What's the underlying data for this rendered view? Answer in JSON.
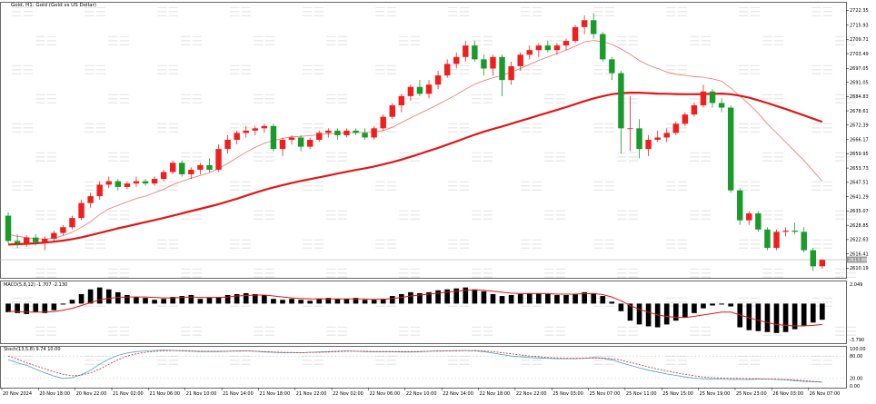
{
  "chart_data": {
    "type": "candlestick",
    "title": "Gold, H1: Gold (Gold vs US Dollar)",
    "colors": {
      "up": "#f01f1f",
      "down": "#1a9a2a",
      "ma_fast": "#f07070",
      "ma_slow": "#e01818",
      "macd_signal": "#e01818",
      "stoch_main": "#3ca9c9",
      "stoch_signal": "#e02020"
    },
    "price_axis": {
      "range": [
        2606.0,
        2726.0
      ],
      "ticks": [
        "2722.35",
        "2715.93",
        "2709.71",
        "2703.49",
        "2697.05",
        "2691.05",
        "2684.83",
        "2678.61",
        "2672.39",
        "2666.17",
        "2659.95",
        "2653.73",
        "2647.51",
        "2641.29",
        "2635.07",
        "2628.85",
        "2622.63",
        "2616.41",
        "2610.19"
      ],
      "current_price": "2613.88"
    },
    "time_labels": [
      "20 Nov 2024",
      "20 Nov 18:00",
      "20 Nov 22:00",
      "21 Nov 02:00",
      "21 Nov 06:00",
      "21 Nov 10:00",
      "21 Nov 14:00",
      "21 Nov 18:00",
      "21 Nov 22:00",
      "22 Nov 02:00",
      "22 Nov 06:00",
      "22 Nov 10:00",
      "22 Nov 14:00",
      "22 Nov 18:00",
      "22 Nov 22:00",
      "25 Nov 03:00",
      "25 Nov 07:00",
      "25 Nov 11:00",
      "25 Nov 15:00",
      "25 Nov 19:00",
      "25 Nov 23:00",
      "26 Nov 03:00",
      "26 Nov 07:00"
    ],
    "candles": [
      [
        2633,
        2634.5,
        2621,
        2622
      ],
      [
        2622,
        2625,
        2619,
        2621
      ],
      [
        2621,
        2624.5,
        2619.5,
        2623.5
      ],
      [
        2623.5,
        2625,
        2620,
        2621.5
      ],
      [
        2621.5,
        2624,
        2618,
        2623
      ],
      [
        2623,
        2626.5,
        2621.5,
        2625.5
      ],
      [
        2625.5,
        2629,
        2624.5,
        2628
      ],
      [
        2628,
        2633,
        2627,
        2632
      ],
      [
        2632,
        2640,
        2631,
        2638.5
      ],
      [
        2638.5,
        2643,
        2636.5,
        2641.5
      ],
      [
        2641.5,
        2648,
        2640,
        2646.5
      ],
      [
        2646.5,
        2650,
        2645,
        2648
      ],
      [
        2648,
        2649,
        2644,
        2645.5
      ],
      [
        2645.5,
        2648,
        2644.5,
        2647
      ],
      [
        2647,
        2650,
        2645.5,
        2648
      ],
      [
        2648,
        2649,
        2646,
        2647
      ],
      [
        2647,
        2650,
        2646,
        2649
      ],
      [
        2649,
        2653,
        2648,
        2652
      ],
      [
        2652,
        2657,
        2651,
        2656
      ],
      [
        2656,
        2657,
        2650,
        2651
      ],
      [
        2651,
        2654,
        2649,
        2653
      ],
      [
        2653,
        2656,
        2651,
        2655
      ],
      [
        2655,
        2658,
        2652,
        2653
      ],
      [
        2653,
        2664,
        2652,
        2662
      ],
      [
        2662,
        2668,
        2660,
        2666
      ],
      [
        2666,
        2670,
        2664,
        2669
      ],
      [
        2669,
        2672,
        2667,
        2670
      ],
      [
        2670,
        2672,
        2668,
        2671
      ],
      [
        2671,
        2673,
        2669,
        2672
      ],
      [
        2672,
        2673,
        2661,
        2662
      ],
      [
        2662,
        2667,
        2659,
        2666
      ],
      [
        2666,
        2668,
        2664,
        2667
      ],
      [
        2667,
        2668,
        2661,
        2663
      ],
      [
        2663,
        2667,
        2662,
        2666
      ],
      [
        2666,
        2670,
        2665,
        2669
      ],
      [
        2669,
        2671,
        2667,
        2670
      ],
      [
        2670,
        2671,
        2666,
        2668
      ],
      [
        2668,
        2671,
        2667,
        2670
      ],
      [
        2670,
        2671,
        2668,
        2669
      ],
      [
        2669,
        2671,
        2666,
        2667
      ],
      [
        2667,
        2672,
        2666,
        2671
      ],
      [
        2671,
        2677,
        2670,
        2676
      ],
      [
        2676,
        2682,
        2675,
        2681
      ],
      [
        2681,
        2686,
        2678,
        2685
      ],
      [
        2685,
        2690,
        2683,
        2689
      ],
      [
        2689,
        2692,
        2685,
        2686
      ],
      [
        2686,
        2692,
        2684,
        2690
      ],
      [
        2690,
        2696,
        2688,
        2694
      ],
      [
        2694,
        2701,
        2693,
        2699
      ],
      [
        2699,
        2704,
        2697,
        2702
      ],
      [
        2702,
        2709,
        2700,
        2707
      ],
      [
        2707,
        2709,
        2700,
        2701
      ],
      [
        2701,
        2703,
        2694,
        2697
      ],
      [
        2697,
        2703,
        2694,
        2702
      ],
      [
        2702,
        2703,
        2685,
        2692
      ],
      [
        2692,
        2700,
        2690,
        2698
      ],
      [
        2698,
        2704,
        2696,
        2703
      ],
      [
        2703,
        2707,
        2701,
        2705
      ],
      [
        2705,
        2708,
        2702,
        2707
      ],
      [
        2707,
        2709,
        2704,
        2705
      ],
      [
        2705,
        2708,
        2703,
        2707
      ],
      [
        2707,
        2710,
        2705,
        2709
      ],
      [
        2709,
        2716,
        2708,
        2715
      ],
      [
        2715,
        2720,
        2712,
        2718
      ],
      [
        2718,
        2721,
        2710,
        2712
      ],
      [
        2712,
        2713,
        2700,
        2701
      ],
      [
        2701,
        2702,
        2692,
        2695
      ],
      [
        2695,
        2696,
        2660,
        2671
      ],
      [
        2671,
        2685,
        2661,
        2671
      ],
      [
        2671,
        2675,
        2658,
        2662
      ],
      [
        2662,
        2668,
        2659,
        2666
      ],
      [
        2666,
        2670,
        2665,
        2667
      ],
      [
        2667,
        2671,
        2665,
        2669
      ],
      [
        2669,
        2674,
        2668,
        2673
      ],
      [
        2673,
        2678,
        2672,
        2677
      ],
      [
        2677,
        2682,
        2676,
        2681
      ],
      [
        2681,
        2690,
        2680,
        2687
      ],
      [
        2687,
        2688,
        2680,
        2682
      ],
      [
        2682,
        2684,
        2678,
        2680
      ],
      [
        2680,
        2681,
        2643,
        2644
      ],
      [
        2644,
        2645,
        2629,
        2631
      ],
      [
        2631,
        2635,
        2629,
        2634
      ],
      [
        2634,
        2635,
        2626,
        2627
      ],
      [
        2627,
        2628,
        2618,
        2619
      ],
      [
        2619,
        2627,
        2618,
        2626
      ],
      [
        2626,
        2628,
        2624,
        2626.5
      ],
      [
        2626.5,
        2630,
        2625,
        2626
      ],
      [
        2626,
        2628,
        2617,
        2618
      ],
      [
        2618,
        2619,
        2609,
        2611
      ],
      [
        2611,
        2614,
        2610,
        2613.8
      ]
    ],
    "ma_fast": [
      2625,
      2624,
      2623.5,
      2623,
      2622.8,
      2623.3,
      2624.3,
      2625.8,
      2628,
      2630.3,
      2633.5,
      2636,
      2637.5,
      2639,
      2640.5,
      2641.5,
      2643,
      2644.5,
      2646.5,
      2648,
      2649.3,
      2650.5,
      2651.7,
      2653.5,
      2655.7,
      2658.2,
      2660.6,
      2662.7,
      2664.5,
      2665.7,
      2666.6,
      2667.3,
      2667.5,
      2667.8,
      2668.2,
      2668.6,
      2668.8,
      2669,
      2669.2,
      2669.2,
      2669.4,
      2670,
      2671.5,
      2673.5,
      2675.5,
      2677.5,
      2679.4,
      2681.4,
      2683.5,
      2685.6,
      2688,
      2690.2,
      2691.7,
      2693,
      2694,
      2695.5,
      2697,
      2698.8,
      2700.5,
      2702,
      2703.5,
      2705,
      2706.7,
      2708.6,
      2709.2,
      2708.7,
      2707.5,
      2705.5,
      2703.2,
      2700.5,
      2698.5,
      2697,
      2695.5,
      2694.5,
      2694,
      2693.5,
      2693.2,
      2692.5,
      2691.5,
      2688.5,
      2685,
      2681.5,
      2677.5,
      2673,
      2669,
      2665,
      2661,
      2657,
      2652.5,
      2648
    ],
    "ma_slow": [
      2620.5,
      2620.6,
      2620.8,
      2621,
      2621.3,
      2621.7,
      2622.2,
      2622.8,
      2623.6,
      2624.5,
      2625.5,
      2626.5,
      2627.5,
      2628.4,
      2629.3,
      2630.2,
      2631.1,
      2632,
      2633,
      2634,
      2635,
      2636,
      2637,
      2638,
      2639.2,
      2640.4,
      2641.7,
      2643,
      2644.2,
      2645.3,
      2646.3,
      2647.2,
      2648.1,
      2648.9,
      2649.7,
      2650.5,
      2651.3,
      2652.1,
      2652.9,
      2653.6,
      2654.4,
      2655.3,
      2656.3,
      2657.4,
      2658.6,
      2659.9,
      2661.2,
      2662.5,
      2663.9,
      2665.3,
      2666.8,
      2668.2,
      2669.5,
      2670.7,
      2671.8,
      2673,
      2674.2,
      2675.4,
      2676.6,
      2677.8,
      2679,
      2680.2,
      2681.5,
      2682.8,
      2684,
      2685,
      2685.8,
      2686.3,
      2686.5,
      2686.5,
      2686.3,
      2686.1,
      2686,
      2685.9,
      2685.8,
      2685.8,
      2685.9,
      2686,
      2686.1,
      2685.8,
      2685.2,
      2684.3,
      2683.2,
      2682,
      2680.7,
      2679.4,
      2678,
      2676.6,
      2675.2,
      2673.8
    ],
    "macd": {
      "label": "MACD(5,8,12) -1.707 -2.130",
      "scale_top": "2.049",
      "scale_bottom": "-3.790",
      "range": [
        -3.79,
        2.049
      ],
      "histogram": [
        -0.9,
        -1.0,
        -1.1,
        -0.9,
        -1.0,
        -0.7,
        -0.1,
        0.4,
        1.0,
        1.5,
        1.7,
        1.5,
        1.2,
        0.9,
        0.7,
        0.6,
        0.4,
        0.5,
        0.7,
        0.8,
        0.9,
        0.5,
        0.6,
        0.7,
        0.9,
        1.0,
        1.1,
        1.0,
        0.9,
        0.5,
        0.4,
        0.5,
        0.4,
        0.3,
        0.5,
        0.6,
        0.5,
        0.5,
        0.6,
        0.4,
        0.4,
        0.5,
        0.8,
        1.0,
        1.2,
        1.1,
        1.2,
        1.4,
        1.5,
        1.6,
        1.7,
        1.5,
        1.3,
        1.0,
        0.8,
        0.9,
        1.0,
        1.1,
        1.1,
        1.0,
        0.9,
        0.9,
        1.0,
        1.2,
        1.1,
        0.8,
        0.2,
        -0.8,
        -1.8,
        -2.2,
        -2.4,
        -2.5,
        -2.2,
        -1.8,
        -1.5,
        -1.0,
        -0.5,
        -0.2,
        -0.1,
        -0.3,
        -2.5,
        -2.8,
        -2.9,
        -3.0,
        -3.1,
        -3.0,
        -2.7,
        -2.3,
        -2.0,
        -1.7
      ],
      "signal": [
        -0.8,
        -0.85,
        -0.9,
        -0.9,
        -0.9,
        -0.85,
        -0.7,
        -0.5,
        -0.2,
        0.1,
        0.4,
        0.55,
        0.65,
        0.7,
        0.7,
        0.7,
        0.65,
        0.6,
        0.6,
        0.65,
        0.7,
        0.65,
        0.65,
        0.65,
        0.7,
        0.8,
        0.85,
        0.9,
        0.9,
        0.8,
        0.7,
        0.6,
        0.55,
        0.5,
        0.5,
        0.5,
        0.5,
        0.5,
        0.5,
        0.5,
        0.45,
        0.45,
        0.55,
        0.65,
        0.8,
        0.9,
        1.0,
        1.1,
        1.2,
        1.3,
        1.4,
        1.45,
        1.4,
        1.3,
        1.2,
        1.1,
        1.05,
        1.05,
        1.05,
        1.05,
        1.0,
        1.0,
        1.0,
        1.05,
        1.05,
        0.95,
        0.7,
        0.3,
        -0.2,
        -0.6,
        -0.9,
        -1.2,
        -1.35,
        -1.45,
        -1.45,
        -1.35,
        -1.2,
        -1.05,
        -0.9,
        -0.9,
        -1.2,
        -1.5,
        -1.75,
        -2.0,
        -2.2,
        -2.3,
        -2.35,
        -2.35,
        -2.3,
        -2.2
      ]
    },
    "stoch": {
      "label": "Stoch(13,5,8) 9.74 10.00",
      "levels": [
        "100.00",
        "80.00",
        "20.00",
        "0.00"
      ],
      "range": [
        0,
        100
      ],
      "main": [
        70,
        62,
        55,
        45,
        35,
        26,
        20,
        22,
        30,
        42,
        58,
        72,
        82,
        88,
        92,
        94,
        95,
        96,
        95,
        94,
        93,
        92,
        92,
        92,
        93,
        94,
        94,
        93,
        91,
        90,
        89,
        89,
        89,
        90,
        91,
        92,
        93,
        94,
        93,
        92,
        92,
        92,
        92,
        91,
        91,
        92,
        93,
        94,
        94,
        95,
        95,
        94,
        92,
        88,
        84,
        80,
        78,
        76,
        75,
        74,
        73,
        73,
        73,
        74,
        76,
        74,
        70,
        62,
        55,
        48,
        42,
        37,
        32,
        28,
        24,
        21,
        19,
        18,
        18,
        17,
        17,
        17,
        18,
        18,
        17,
        16,
        14,
        12,
        11,
        10
      ],
      "signal": [
        80,
        72,
        62,
        54,
        46,
        38,
        31,
        27,
        29,
        35,
        45,
        58,
        70,
        80,
        86,
        90,
        93,
        94,
        95,
        95,
        94,
        93,
        93,
        93,
        93,
        93,
        94,
        93,
        92,
        91,
        90,
        90,
        89,
        90,
        90,
        91,
        92,
        93,
        93,
        93,
        92,
        92,
        92,
        92,
        92,
        92,
        93,
        93,
        94,
        94,
        95,
        95,
        94,
        92,
        89,
        86,
        83,
        80,
        78,
        76,
        75,
        74,
        74,
        74,
        75,
        75,
        73,
        69,
        63,
        57,
        51,
        45,
        40,
        35,
        31,
        27,
        24,
        22,
        21,
        20,
        20,
        19,
        19,
        18,
        18,
        17,
        16,
        14,
        12,
        10
      ]
    }
  }
}
